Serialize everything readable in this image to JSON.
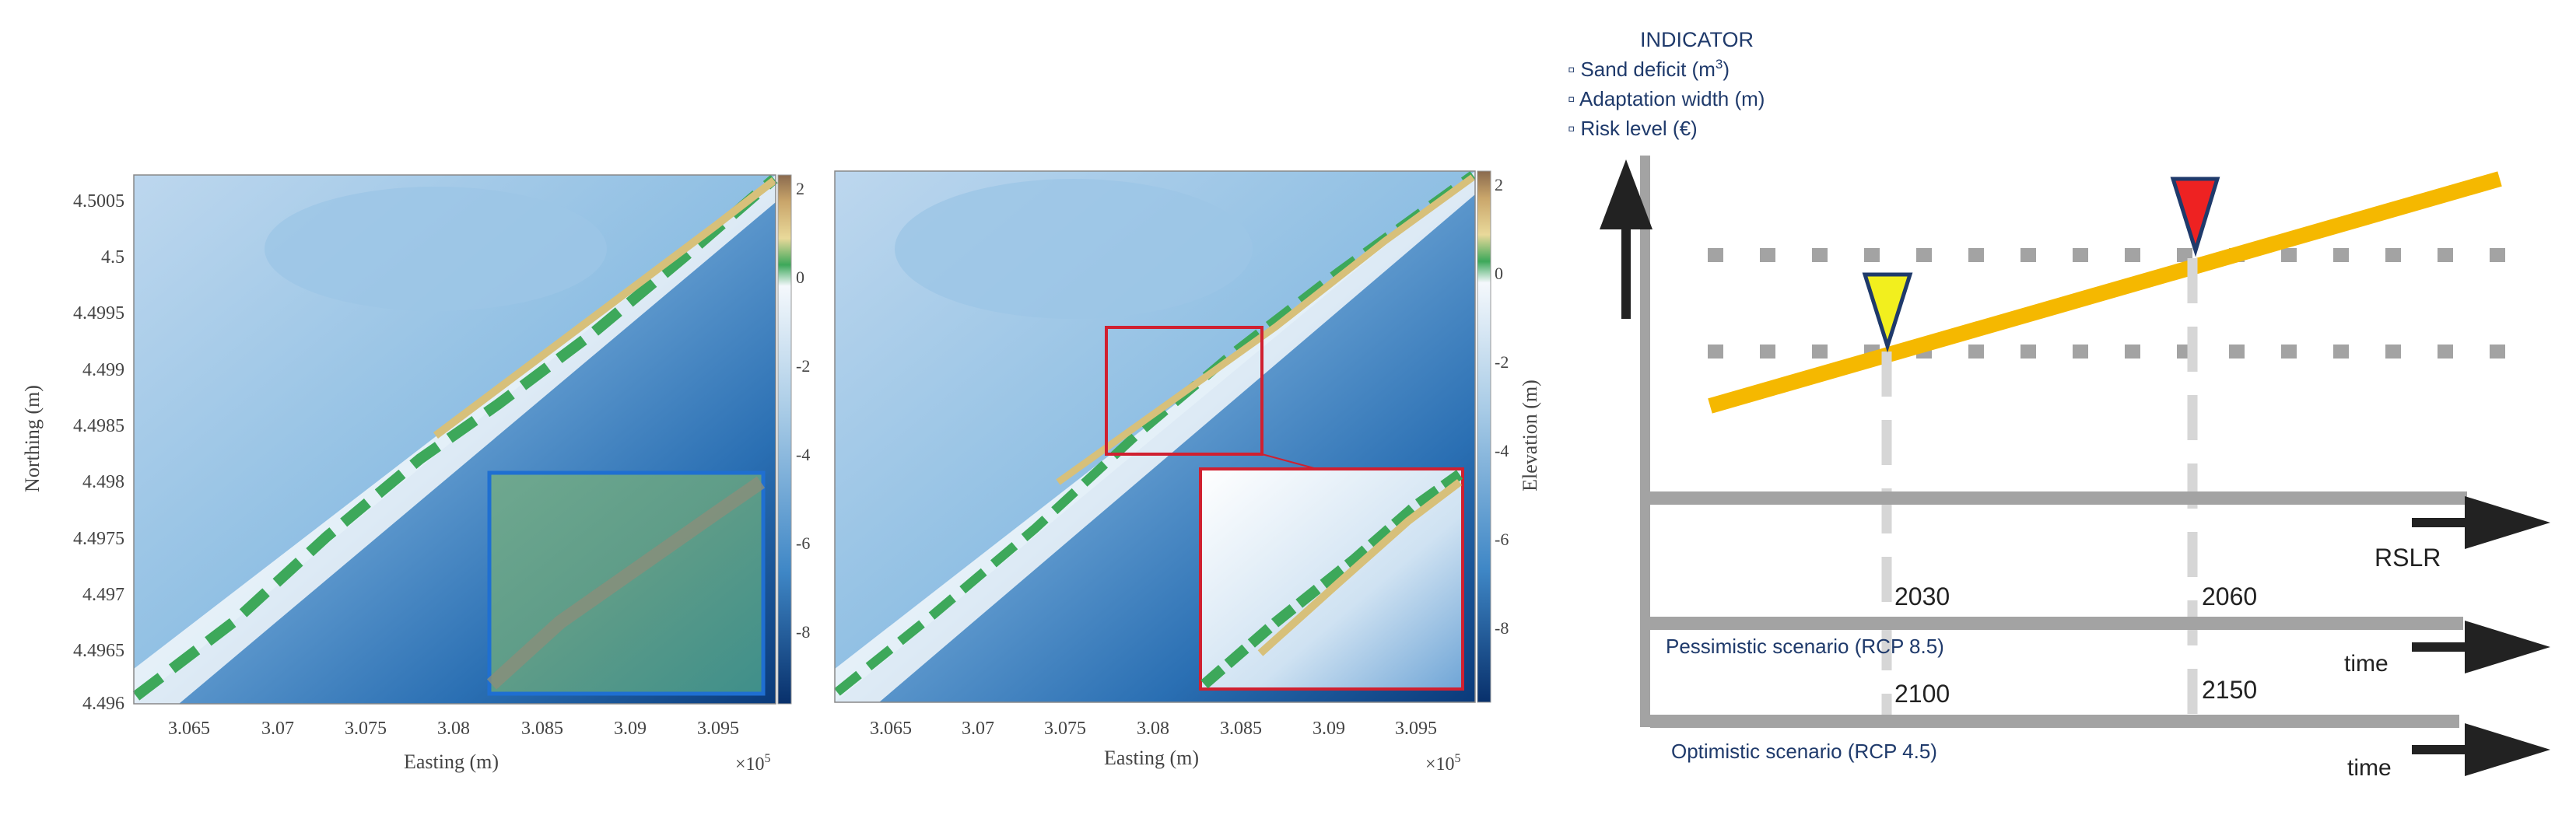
{
  "map_left": {
    "y_axis_label": "Northing (m)",
    "x_axis_label": "Easting (m)",
    "x_multiplier": "×10",
    "x_multiplier_exp": "5",
    "y_ticks": [
      "4.5005",
      "4.5",
      "4.4995",
      "4.499",
      "4.4985",
      "4.498",
      "4.4975",
      "4.497",
      "4.4965",
      "4.496"
    ],
    "x_ticks": [
      "3.065",
      "3.07",
      "3.075",
      "3.08",
      "3.085",
      "3.09",
      "3.095"
    ],
    "colorbar_ticks": [
      "2",
      "0",
      "-2",
      "-4",
      "-6",
      "-8"
    ]
  },
  "map_right": {
    "x_axis_label": "Easting (m)",
    "x_multiplier": "×10",
    "x_multiplier_exp": "5",
    "colorbar_label": "Elevation (m)",
    "x_ticks": [
      "3.065",
      "3.07",
      "3.075",
      "3.08",
      "3.085",
      "3.09",
      "3.095"
    ],
    "colorbar_ticks": [
      "2",
      "0",
      "-2",
      "-4",
      "-6",
      "-8"
    ]
  },
  "diagram": {
    "indicator_title": "INDICATOR",
    "indicators": [
      {
        "bullet": "▫",
        "text": "Sand deficit (m",
        "sup": "3",
        "suffix": ")"
      },
      {
        "bullet": "▫",
        "text": "Adaptation width (m)",
        "sup": "",
        "suffix": ""
      },
      {
        "bullet": "▫",
        "text": "Risk level (€)",
        "sup": "",
        "suffix": ""
      }
    ],
    "rslr_label": "RSLR",
    "time_label_1": "time",
    "time_label_2": "time",
    "scenario_pessimistic": "Pessimistic scenario (RCP 8.5)",
    "scenario_optimistic": "Optimistic scenario (RCP 4.5)",
    "year_p_1": "2030",
    "year_p_2": "2060",
    "year_o_1": "2100",
    "year_o_2": "2150",
    "colors": {
      "trend_line": "#f5b800",
      "marker_low": "#f2ef1e",
      "marker_high": "#ee2222",
      "marker_outline": "#1f3a6b",
      "axis_gray": "#a3a3a3",
      "text_blue": "#1f3a6b",
      "dark_arrow": "#222222"
    }
  }
}
